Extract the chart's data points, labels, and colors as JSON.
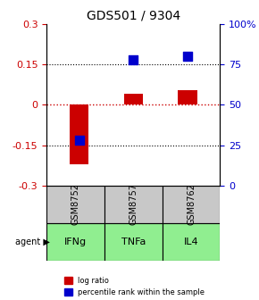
{
  "title": "GDS501 / 9304",
  "samples": [
    "GSM8752",
    "GSM8757",
    "GSM8762"
  ],
  "agents": [
    "IFNg",
    "TNFa",
    "IL4"
  ],
  "log_ratios": [
    -0.22,
    0.04,
    0.055
  ],
  "percentile_ranks": [
    28,
    78,
    80
  ],
  "ylim_left": [
    -0.3,
    0.3
  ],
  "ylim_right": [
    0,
    100
  ],
  "yticks_left": [
    -0.3,
    -0.15,
    0,
    0.15,
    0.3
  ],
  "yticks_right": [
    0,
    25,
    50,
    75,
    100
  ],
  "ytick_labels_left": [
    "-0.3",
    "-0.15",
    "0",
    "0.15",
    "0.3"
  ],
  "ytick_labels_right": [
    "0",
    "25",
    "50",
    "75",
    "100%"
  ],
  "bar_color_red": "#cc0000",
  "bar_color_blue": "#0000cc",
  "agent_bg_color": "#90ee90",
  "sample_bg_color": "#c8c8c8",
  "grid_color": "#000000",
  "dotted_line_color_red": "#cc0000",
  "dotted_line_color_black": "#000000",
  "legend_red_label": "log ratio",
  "legend_blue_label": "percentile rank within the sample",
  "bar_width": 0.35,
  "blue_square_size": 60
}
